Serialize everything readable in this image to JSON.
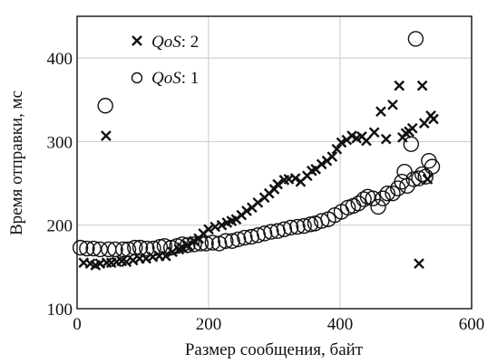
{
  "chart_data": {
    "type": "scatter",
    "title": "",
    "xlabel": "Размер сообщения, байт",
    "ylabel": "Время отправки, мс",
    "xlim": [
      0,
      600
    ],
    "ylim": [
      100,
      450
    ],
    "xticks": [
      0,
      200,
      400,
      600
    ],
    "yticks": [
      100,
      200,
      300,
      400
    ],
    "grid": true,
    "legend_position": "top-left",
    "series": [
      {
        "name": "QoS: 2",
        "name_italic": "QoS",
        "name_rest": ": 2",
        "marker": "x",
        "points": [
          [
            10,
            155
          ],
          [
            20,
            154
          ],
          [
            28,
            152
          ],
          [
            35,
            154
          ],
          [
            44,
            307
          ],
          [
            45,
            155
          ],
          [
            52,
            155
          ],
          [
            60,
            156
          ],
          [
            68,
            157
          ],
          [
            75,
            156
          ],
          [
            85,
            158
          ],
          [
            95,
            160
          ],
          [
            105,
            160
          ],
          [
            115,
            162
          ],
          [
            125,
            163
          ],
          [
            135,
            163
          ],
          [
            145,
            168
          ],
          [
            155,
            171
          ],
          [
            160,
            173
          ],
          [
            168,
            176
          ],
          [
            178,
            181
          ],
          [
            185,
            184
          ],
          [
            192,
            190
          ],
          [
            200,
            195
          ],
          [
            210,
            198
          ],
          [
            220,
            200
          ],
          [
            228,
            203
          ],
          [
            235,
            205
          ],
          [
            242,
            207
          ],
          [
            250,
            212
          ],
          [
            258,
            217
          ],
          [
            266,
            221
          ],
          [
            275,
            227
          ],
          [
            285,
            233
          ],
          [
            292,
            238
          ],
          [
            300,
            243
          ],
          [
            305,
            249
          ],
          [
            315,
            254
          ],
          [
            322,
            255
          ],
          [
            332,
            256
          ],
          [
            340,
            252
          ],
          [
            350,
            259
          ],
          [
            357,
            265
          ],
          [
            363,
            267
          ],
          [
            372,
            273
          ],
          [
            380,
            277
          ],
          [
            388,
            282
          ],
          [
            395,
            291
          ],
          [
            402,
            299
          ],
          [
            410,
            302
          ],
          [
            418,
            307
          ],
          [
            425,
            304
          ],
          [
            433,
            306
          ],
          [
            440,
            301
          ],
          [
            452,
            311
          ],
          [
            462,
            336
          ],
          [
            470,
            303
          ],
          [
            480,
            344
          ],
          [
            490,
            367
          ],
          [
            495,
            305
          ],
          [
            500,
            310
          ],
          [
            505,
            312
          ],
          [
            510,
            316
          ],
          [
            520,
            154
          ],
          [
            525,
            367
          ],
          [
            528,
            322
          ],
          [
            533,
            255
          ],
          [
            538,
            331
          ],
          [
            542,
            327
          ]
        ]
      },
      {
        "name": "QoS: 1",
        "name_italic": "QoS",
        "name_rest": ": 1",
        "marker": "o",
        "points": [
          [
            5,
            173
          ],
          [
            15,
            172
          ],
          [
            25,
            172
          ],
          [
            35,
            171
          ],
          [
            43,
            343
          ],
          [
            48,
            171
          ],
          [
            58,
            171
          ],
          [
            70,
            171
          ],
          [
            78,
            171
          ],
          [
            88,
            173
          ],
          [
            96,
            173
          ],
          [
            106,
            172
          ],
          [
            116,
            172
          ],
          [
            126,
            174
          ],
          [
            133,
            175
          ],
          [
            143,
            173
          ],
          [
            152,
            175
          ],
          [
            160,
            177
          ],
          [
            168,
            176
          ],
          [
            178,
            177
          ],
          [
            188,
            178
          ],
          [
            196,
            178
          ],
          [
            206,
            179
          ],
          [
            216,
            178
          ],
          [
            226,
            181
          ],
          [
            236,
            181
          ],
          [
            245,
            183
          ],
          [
            255,
            185
          ],
          [
            265,
            186
          ],
          [
            275,
            188
          ],
          [
            285,
            190
          ],
          [
            295,
            192
          ],
          [
            305,
            193
          ],
          [
            315,
            195
          ],
          [
            325,
            197
          ],
          [
            335,
            198
          ],
          [
            345,
            199
          ],
          [
            355,
            201
          ],
          [
            362,
            202
          ],
          [
            372,
            205
          ],
          [
            382,
            207
          ],
          [
            392,
            212
          ],
          [
            402,
            216
          ],
          [
            412,
            221
          ],
          [
            420,
            223
          ],
          [
            428,
            226
          ],
          [
            436,
            231
          ],
          [
            442,
            234
          ],
          [
            450,
            232
          ],
          [
            458,
            222
          ],
          [
            465,
            232
          ],
          [
            472,
            238
          ],
          [
            480,
            238
          ],
          [
            488,
            244
          ],
          [
            494,
            252
          ],
          [
            498,
            264
          ],
          [
            502,
            247
          ],
          [
            508,
            297
          ],
          [
            512,
            255
          ],
          [
            515,
            423
          ],
          [
            520,
            256
          ],
          [
            525,
            261
          ],
          [
            530,
            258
          ],
          [
            535,
            277
          ],
          [
            540,
            270
          ]
        ]
      }
    ]
  }
}
